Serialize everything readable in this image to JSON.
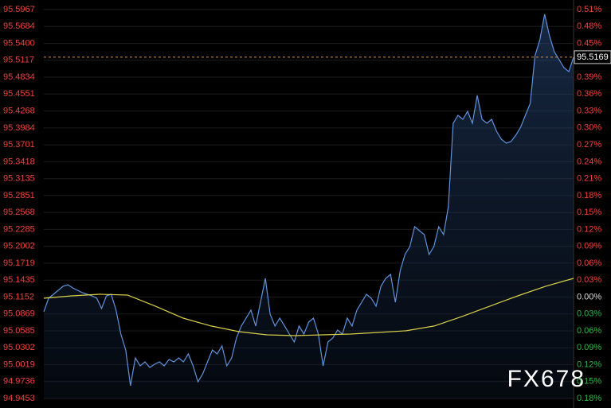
{
  "chart_data": {
    "type": "line",
    "series": [
      {
        "color": "#5f93dc",
        "area": true,
        "values": [
          95.0905,
          95.1132,
          95.1198,
          95.1265,
          95.1332,
          95.1358,
          95.1305,
          95.1265,
          95.1225,
          95.1198,
          95.1172,
          95.1132,
          95.0959,
          95.1172,
          95.1198,
          95.0932,
          95.0532,
          95.0266,
          94.9667,
          95.0133,
          94.9999,
          95.0066,
          94.9973,
          95.0026,
          95.0066,
          94.9999,
          95.0106,
          95.0066,
          95.0133,
          95.0066,
          95.0199,
          94.9999,
          94.9733,
          94.9866,
          95.0066,
          95.0266,
          95.0199,
          95.0333,
          94.9999,
          95.0133,
          95.0466,
          95.0666,
          95.0799,
          95.0932,
          95.0666,
          95.1065,
          95.1465,
          95.0865,
          95.0666,
          95.0799,
          95.0666,
          95.0532,
          95.0399,
          95.0666,
          95.0532,
          95.0732,
          95.0799,
          95.0532,
          94.9999,
          95.0399,
          95.0466,
          95.0599,
          95.0532,
          95.0799,
          95.0666,
          95.0932,
          95.1065,
          95.1198,
          95.1132,
          95.0999,
          95.1332,
          95.1465,
          95.1531,
          95.1065,
          95.1598,
          95.1864,
          95.1998,
          95.2331,
          95.2264,
          95.2197,
          95.1864,
          95.1998,
          95.2331,
          95.2197,
          95.2664,
          95.4062,
          95.4195,
          95.4129,
          95.4262,
          95.4062,
          95.4528,
          95.4129,
          95.4062,
          95.4129,
          95.3929,
          95.3796,
          95.3729,
          95.3756,
          95.3862,
          95.3996,
          95.4195,
          95.4395,
          95.5194,
          95.5461,
          95.5887,
          95.5527,
          95.5261,
          95.5128,
          95.4995,
          95.4928,
          95.5169
        ]
      },
      {
        "color": "#d8d04a",
        "area": false,
        "values": [
          95.1132,
          95.1172,
          95.1198,
          95.1185,
          95.0999,
          95.0799,
          95.0666,
          95.0572,
          95.0519,
          95.0506,
          95.0519,
          95.0532,
          95.0559,
          95.0586,
          95.0666,
          95.0826,
          95.0999,
          95.1172,
          95.1332,
          95.1465
        ]
      }
    ],
    "ylim": [
      94.9453,
      95.5967
    ],
    "yticks": [
      95.5967,
      95.5684,
      {
        "value": 95.54,
        "label": "95.5400"
      },
      95.5117,
      95.4834,
      95.4551,
      95.4268,
      95.3984,
      95.3701,
      95.3418,
      95.3135,
      95.2851,
      95.2568,
      95.2285,
      95.2002,
      95.1719,
      95.1435,
      95.1152,
      95.0869,
      95.0585,
      95.0302,
      95.0019,
      94.9736,
      94.9453
    ],
    "y2lim": [
      -0.18,
      0.51
    ],
    "y2ticks": [
      {
        "value": 0.51,
        "label": "0.51%"
      },
      {
        "value": 0.48,
        "label": "0.48%"
      },
      {
        "value": 0.45,
        "label": "0.45%"
      },
      {
        "value": 0.42,
        "label": "0.42%"
      },
      {
        "value": 0.39,
        "label": "0.39%"
      },
      {
        "value": 0.36,
        "label": "0.36%"
      },
      {
        "value": 0.33,
        "label": "0.33%"
      },
      {
        "value": 0.3,
        "label": "0.30%"
      },
      {
        "value": 0.27,
        "label": "0.27%"
      },
      {
        "value": 0.24,
        "label": "0.24%"
      },
      {
        "value": 0.21,
        "label": "0.21%"
      },
      {
        "value": 0.18,
        "label": "0.18%"
      },
      {
        "value": 0.15,
        "label": "0.15%"
      },
      {
        "value": 0.12,
        "label": "0.12%"
      },
      {
        "value": 0.09,
        "label": "0.09%"
      },
      {
        "value": 0.06,
        "label": "0.06%"
      },
      {
        "value": 0.03,
        "label": "0.03%"
      },
      {
        "value": 0,
        "label": "0.00%"
      },
      {
        "value": -0.03,
        "label": "0.03%"
      },
      {
        "value": -0.06,
        "label": "0.06%"
      },
      {
        "value": -0.09,
        "label": "0.09%"
      },
      {
        "value": -0.12,
        "label": "0.12%"
      },
      {
        "value": -0.15,
        "label": "0.15%"
      },
      {
        "value": -0.18,
        "label": "0.18%"
      }
    ],
    "up_color": "#e8433f",
    "down_color": "#2fb34a",
    "current_price": 95.5169,
    "watermark": "FX678",
    "grid": true
  }
}
